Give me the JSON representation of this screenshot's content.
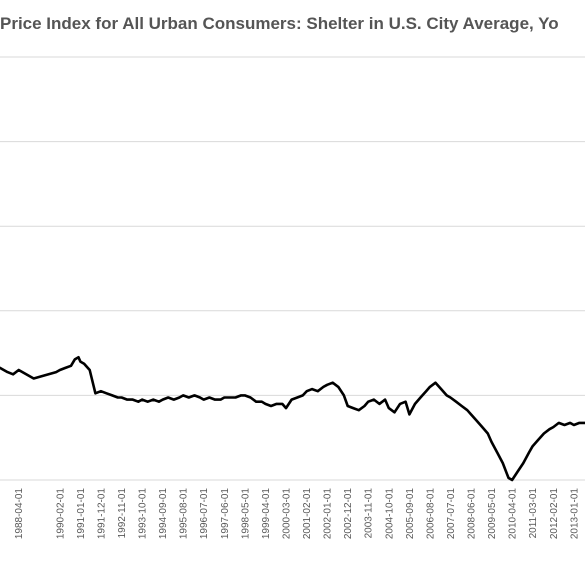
{
  "chart_data": {
    "type": "line",
    "title": "Price Index for All Urban Consumers: Shelter in U.S. City Average, Yo",
    "xlabel": "",
    "ylabel": "",
    "grid": true,
    "legend": "none",
    "line_color": "#000000",
    "grid_color": "#d9d9d9",
    "y_gridline_count": 6,
    "x_ticks": [
      "1988-04-01",
      "1990-02-01",
      "1991-01-01",
      "1991-12-01",
      "1992-11-01",
      "1993-10-01",
      "1994-09-01",
      "1995-08-01",
      "1996-07-01",
      "1997-06-01",
      "1998-05-01",
      "1999-04-01",
      "2000-03-01",
      "2001-02-01",
      "2002-01-01",
      "2002-12-01",
      "2003-11-01",
      "2004-10-01",
      "2005-09-01",
      "2006-08-01",
      "2007-07-01",
      "2008-06-01",
      "2009-05-01",
      "2010-04-01",
      "2011-03-01",
      "2012-02-01",
      "2013-01-01"
    ],
    "series": [
      {
        "x": [
          "1987-06-01",
          "1987-10-01",
          "1988-01-01",
          "1988-04-01",
          "1988-08-01",
          "1988-12-01",
          "1989-04-01",
          "1989-08-01",
          "1989-12-01",
          "1990-02-01",
          "1990-05-01",
          "1990-08-01",
          "1990-10-01",
          "1990-12-01",
          "1991-01-01",
          "1991-03-01",
          "1991-06-01",
          "1991-09-01",
          "1991-12-01",
          "1992-03-01",
          "1992-06-01",
          "1992-09-01",
          "1992-11-01",
          "1993-02-01",
          "1993-05-01",
          "1993-08-01",
          "1993-10-01",
          "1994-01-01",
          "1994-04-01",
          "1994-07-01",
          "1994-09-01",
          "1994-12-01",
          "1995-03-01",
          "1995-06-01",
          "1995-08-01",
          "1995-11-01",
          "1996-02-01",
          "1996-05-01",
          "1996-07-01",
          "1996-10-01",
          "1997-01-01",
          "1997-04-01",
          "1997-06-01",
          "1997-09-01",
          "1997-12-01",
          "1998-03-01",
          "1998-05-01",
          "1998-08-01",
          "1998-11-01",
          "1999-02-01",
          "1999-04-01",
          "1999-07-01",
          "1999-10-01",
          "2000-01-01",
          "2000-03-01",
          "2000-06-01",
          "2000-09-01",
          "2000-12-01",
          "2001-02-01",
          "2001-05-01",
          "2001-08-01",
          "2001-11-01",
          "2002-01-01",
          "2002-04-01",
          "2002-07-01",
          "2002-10-01",
          "2002-12-01",
          "2003-03-01",
          "2003-06-01",
          "2003-09-01",
          "2003-11-01",
          "2004-02-01",
          "2004-05-01",
          "2004-08-01",
          "2004-10-01",
          "2005-01-01",
          "2005-04-01",
          "2005-07-01",
          "2005-09-01",
          "2005-12-01",
          "2006-03-01",
          "2006-06-01",
          "2006-08-01",
          "2006-11-01",
          "2007-02-01",
          "2007-05-01",
          "2007-07-01",
          "2007-10-01",
          "2008-01-01",
          "2008-04-01",
          "2008-06-01",
          "2008-09-01",
          "2008-12-01",
          "2009-03-01",
          "2009-05-01",
          "2009-08-01",
          "2009-11-01",
          "2010-02-01",
          "2010-04-01",
          "2010-07-01",
          "2010-10-01",
          "2011-01-01",
          "2011-03-01",
          "2011-06-01",
          "2011-09-01",
          "2011-12-01",
          "2012-02-01",
          "2012-05-01",
          "2012-08-01",
          "2012-11-01",
          "2013-01-01",
          "2013-04-01",
          "2013-07-01"
        ],
        "values": [
          5.3,
          5.1,
          5.0,
          5.2,
          5.0,
          4.8,
          4.9,
          5.0,
          5.1,
          5.2,
          5.3,
          5.4,
          5.7,
          5.8,
          5.6,
          5.5,
          5.2,
          4.1,
          4.2,
          4.1,
          4.0,
          3.9,
          3.9,
          3.8,
          3.8,
          3.7,
          3.8,
          3.7,
          3.8,
          3.7,
          3.8,
          3.9,
          3.8,
          3.9,
          4.0,
          3.9,
          4.0,
          3.9,
          3.8,
          3.9,
          3.8,
          3.8,
          3.9,
          3.9,
          3.9,
          4.0,
          4.0,
          3.9,
          3.7,
          3.7,
          3.6,
          3.5,
          3.6,
          3.6,
          3.4,
          3.8,
          3.9,
          4.0,
          4.2,
          4.3,
          4.2,
          4.4,
          4.5,
          4.6,
          4.4,
          4.0,
          3.5,
          3.4,
          3.3,
          3.5,
          3.7,
          3.8,
          3.6,
          3.8,
          3.4,
          3.2,
          3.6,
          3.7,
          3.1,
          3.6,
          3.9,
          4.2,
          4.4,
          4.6,
          4.3,
          4.0,
          3.9,
          3.7,
          3.5,
          3.3,
          3.1,
          2.8,
          2.5,
          2.2,
          1.8,
          1.3,
          0.8,
          0.1,
          0.0,
          0.4,
          0.8,
          1.3,
          1.6,
          1.9,
          2.2,
          2.4,
          2.5,
          2.7,
          2.6,
          2.7,
          2.6,
          2.7,
          2.7
        ]
      }
    ]
  }
}
